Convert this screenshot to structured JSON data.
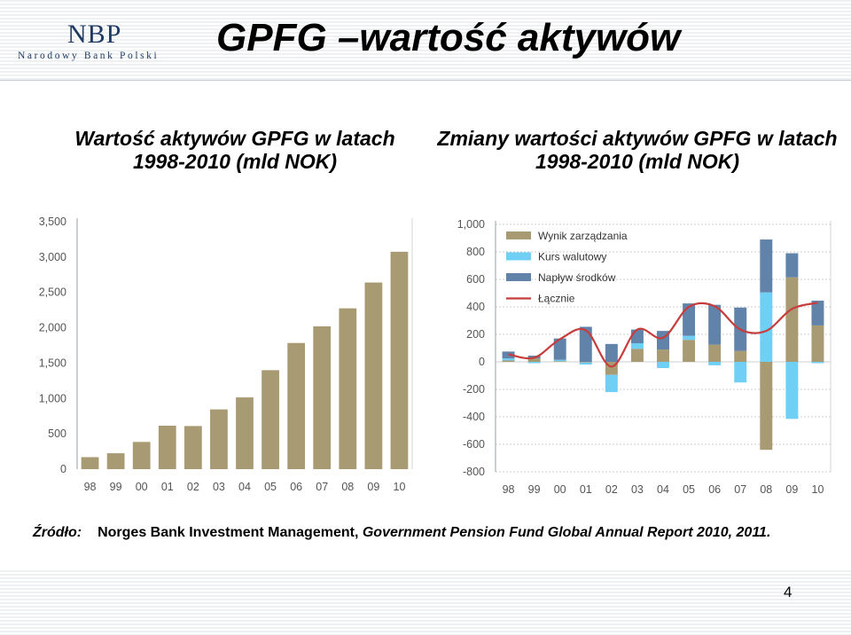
{
  "header": {
    "logo_text": "NBP",
    "logo_subtitle": "Narodowy Bank Polski",
    "title": "GPFG –wartość aktywów"
  },
  "left_title": "Wartość aktywów GPFG w latach 1998-2010 (mld NOK)",
  "right_title": "Zmiany wartości aktywów GPFG w latach 1998-2010 (mld NOK)",
  "source": {
    "label": "Źródło:",
    "text1": "Norges Bank Investment Management, ",
    "text2": "Government Pension Fund  Global Annual Report 2010",
    "text3": ", 2011."
  },
  "page_number": "4",
  "colors": {
    "management": "#a89a72",
    "currency": "#6fcff5",
    "inflow": "#6183a9",
    "total": "#c83c3c",
    "grid": "#b8bec4"
  },
  "chart_data": [
    {
      "type": "bar",
      "categories": [
        "98",
        "99",
        "00",
        "01",
        "02",
        "03",
        "04",
        "05",
        "06",
        "07",
        "08",
        "09",
        "10"
      ],
      "values": [
        170,
        225,
        385,
        615,
        610,
        845,
        1015,
        1400,
        1785,
        2020,
        2275,
        2640,
        3075
      ],
      "ylim": [
        0,
        3500
      ],
      "yticks": [
        "0",
        "500",
        "1,000",
        "1,500",
        "2,000",
        "2,500",
        "3,000",
        "3,500"
      ],
      "ytick_values": [
        0,
        500,
        1000,
        1500,
        2000,
        2500,
        3000,
        3500
      ],
      "grid": false
    },
    {
      "type": "bar",
      "stacked": true,
      "categories": [
        "98",
        "99",
        "00",
        "01",
        "02",
        "03",
        "04",
        "05",
        "06",
        "07",
        "08",
        "09",
        "10"
      ],
      "ylim": [
        -800,
        1000
      ],
      "yticks": [
        "-800",
        "-600",
        "-400",
        "-200",
        "0",
        "200",
        "400",
        "600",
        "800",
        "1,000"
      ],
      "ytick_values": [
        -800,
        -600,
        -400,
        -200,
        0,
        200,
        400,
        600,
        800,
        1000
      ],
      "grid": true,
      "legend_position": "top-left",
      "series": [
        {
          "name": "Wynik zarządzania",
          "kind": "bar",
          "values": [
            10,
            25,
            5,
            -5,
            -95,
            95,
            90,
            160,
            125,
            80,
            -640,
            615,
            265
          ]
        },
        {
          "name": "Kurs walutowy",
          "kind": "bar",
          "values": [
            15,
            -10,
            10,
            -15,
            -125,
            40,
            -45,
            30,
            -25,
            -150,
            505,
            -415,
            -10
          ]
        },
        {
          "name": "Napływ środków",
          "kind": "bar",
          "values": [
            50,
            20,
            155,
            255,
            130,
            100,
            135,
            235,
            290,
            315,
            385,
            175,
            180
          ]
        },
        {
          "name": "Łącznie",
          "kind": "line",
          "values": [
            55,
            30,
            165,
            230,
            -35,
            235,
            175,
            400,
            405,
            235,
            225,
            385,
            430
          ]
        }
      ]
    }
  ]
}
